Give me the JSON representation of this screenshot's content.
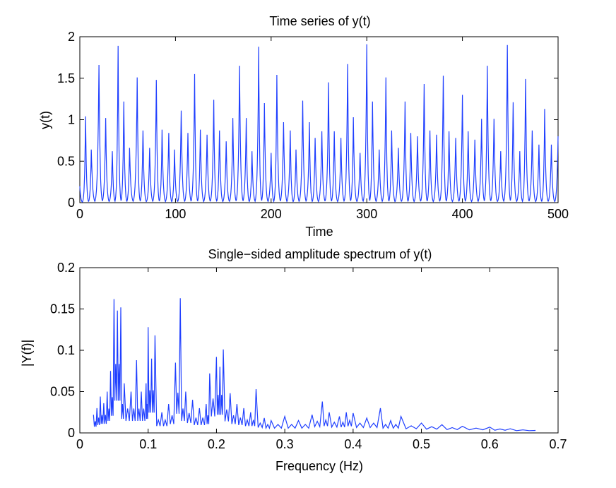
{
  "chart_data": [
    {
      "type": "line",
      "title": "Time series of y(t)",
      "xlabel": "Time",
      "ylabel": "y(t)",
      "xlim": [
        0,
        500
      ],
      "ylim": [
        0,
        2
      ],
      "xticks": [
        "0",
        "100",
        "200",
        "300",
        "400",
        "500"
      ],
      "yticks": [
        "0",
        "0.5",
        "1",
        "1.5",
        "2"
      ],
      "line_color": "#1f3fff",
      "peaks": {
        "t": [
          0,
          6,
          12,
          20,
          27,
          34,
          40,
          46,
          52,
          60,
          66,
          73,
          80,
          86,
          93,
          99,
          106,
          113,
          120,
          126,
          133,
          140,
          146,
          153,
          160,
          167,
          174,
          180,
          187,
          193,
          200,
          206,
          213,
          220,
          226,
          233,
          240,
          246,
          253,
          260,
          266,
          273,
          280,
          286,
          293,
          300,
          306,
          313,
          320,
          326,
          333,
          340,
          346,
          353,
          360,
          366,
          373,
          380,
          386,
          393,
          400,
          406,
          413,
          420,
          426,
          433,
          440,
          447,
          453,
          460,
          466,
          473,
          480,
          486,
          493,
          500
        ],
        "y": [
          0.2,
          1.04,
          0.64,
          1.66,
          1.02,
          0.62,
          1.89,
          1.22,
          0.66,
          1.51,
          0.87,
          0.66,
          1.48,
          0.88,
          0.84,
          0.64,
          1.11,
          0.84,
          1.55,
          0.88,
          0.82,
          1.24,
          0.87,
          0.74,
          1.02,
          1.65,
          1.02,
          0.62,
          1.88,
          1.2,
          0.6,
          1.54,
          0.97,
          0.87,
          0.64,
          1.23,
          0.97,
          0.78,
          0.86,
          1.45,
          0.86,
          0.78,
          1.67,
          1.03,
          0.6,
          1.91,
          1.22,
          0.64,
          1.51,
          0.87,
          0.66,
          1.22,
          0.84,
          0.8,
          1.43,
          0.87,
          0.82,
          1.53,
          0.86,
          0.78,
          1.3,
          0.86,
          0.76,
          1.01,
          1.65,
          1.01,
          0.62,
          1.9,
          1.21,
          0.62,
          1.49,
          0.87,
          0.7,
          1.13,
          0.7,
          0.8
        ]
      }
    },
    {
      "type": "line",
      "title": "Single−sided amplitude spectrum of y(t)",
      "xlabel": "Frequency (Hz)",
      "ylabel": "|Y(f)|",
      "xlim": [
        0,
        0.7
      ],
      "ylim": [
        0,
        0.2
      ],
      "xticks": [
        "0",
        "0.1",
        "0.2",
        "0.3",
        "0.4",
        "0.5",
        "0.6",
        "0.7"
      ],
      "yticks": [
        "0",
        "0.05",
        "0.1",
        "0.15",
        "0.2"
      ],
      "line_color": "#1f3fff",
      "peaks": {
        "f": [
          0.02,
          0.025,
          0.03,
          0.035,
          0.04,
          0.045,
          0.05,
          0.055,
          0.06,
          0.065,
          0.075,
          0.083,
          0.09,
          0.097,
          0.1,
          0.105,
          0.11,
          0.12,
          0.13,
          0.14,
          0.147,
          0.155,
          0.165,
          0.175,
          0.185,
          0.19,
          0.2,
          0.205,
          0.21,
          0.22,
          0.23,
          0.24,
          0.25,
          0.258,
          0.27,
          0.28,
          0.3,
          0.32,
          0.34,
          0.355,
          0.365,
          0.38,
          0.39,
          0.4,
          0.42,
          0.44,
          0.455,
          0.47,
          0.5,
          0.53,
          0.56,
          0.6,
          0.63,
          0.667
        ],
        "amp": [
          0.022,
          0.03,
          0.044,
          0.036,
          0.05,
          0.075,
          0.162,
          0.148,
          0.152,
          0.06,
          0.05,
          0.088,
          0.05,
          0.06,
          0.128,
          0.09,
          0.118,
          0.025,
          0.035,
          0.085,
          0.163,
          0.05,
          0.04,
          0.03,
          0.035,
          0.072,
          0.092,
          0.08,
          0.101,
          0.048,
          0.035,
          0.03,
          0.025,
          0.053,
          0.018,
          0.015,
          0.02,
          0.015,
          0.022,
          0.038,
          0.025,
          0.02,
          0.025,
          0.024,
          0.018,
          0.03,
          0.015,
          0.02,
          0.012,
          0.01,
          0.008,
          0.007,
          0.005,
          0.003
        ]
      }
    }
  ]
}
